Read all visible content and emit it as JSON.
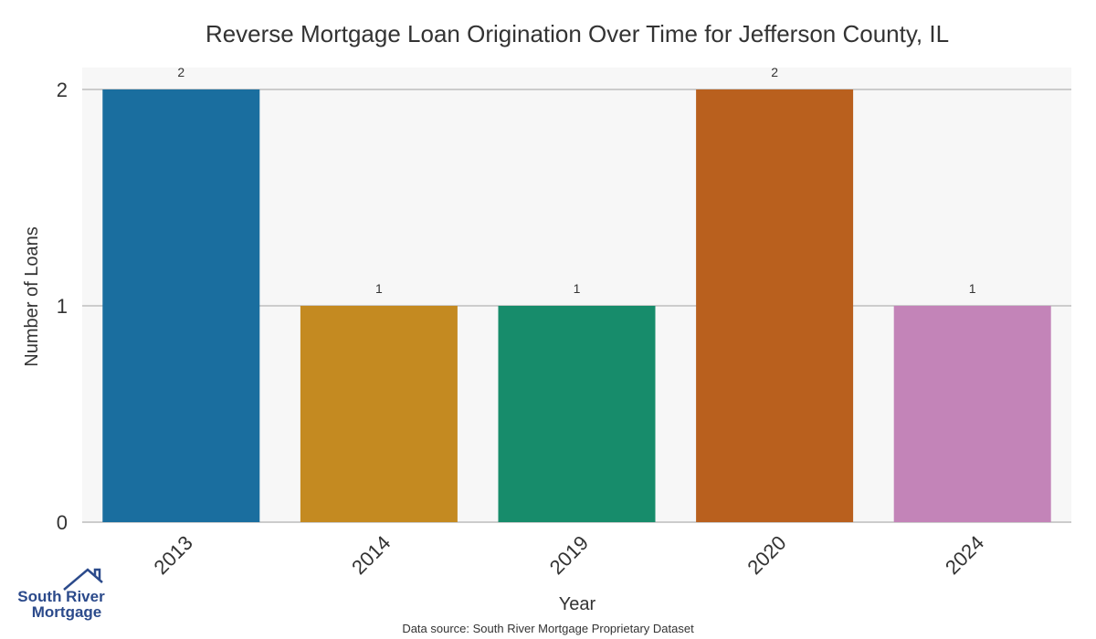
{
  "chart_data": {
    "type": "bar",
    "title": "Reverse Mortgage Loan Origination Over Time for Jefferson County, IL",
    "xlabel": "Year",
    "ylabel": "Number of Loans",
    "categories": [
      "2013",
      "2014",
      "2019",
      "2020",
      "2024"
    ],
    "values": [
      2,
      1,
      1,
      2,
      1
    ],
    "data_labels": [
      "2",
      "1",
      "1",
      "2",
      "1"
    ],
    "colors": [
      "#1a6e9f",
      "#c48a21",
      "#178c6b",
      "#b9601e",
      "#c384b8"
    ],
    "yticks": [
      0,
      1,
      2
    ],
    "ylim": [
      0,
      2.1
    ],
    "grid": true,
    "background": "#f7f7f7",
    "gridline_color": "#cccccc"
  },
  "footer": {
    "source": "Data source: South River Mortgage Proprietary Dataset"
  },
  "logo": {
    "line1": "South River",
    "line2": "Mortgage",
    "color": "#2b4a8b",
    "icon": "house-icon"
  }
}
